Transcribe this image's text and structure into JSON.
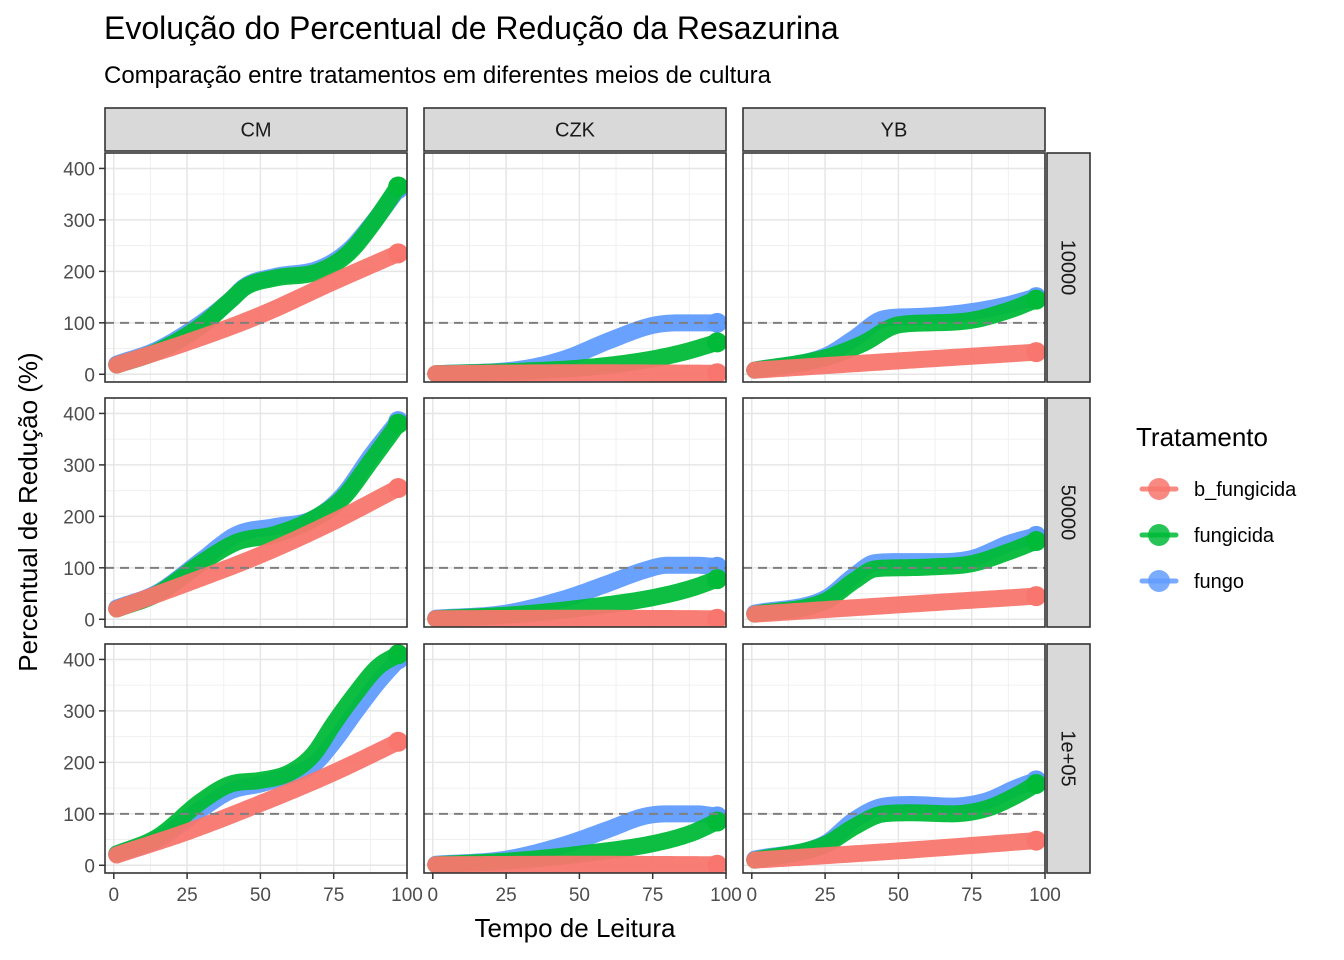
{
  "chart_data": {
    "type": "line",
    "title": "Evolução do Percentual de Redução da Resazurina",
    "subtitle": "Comparação entre tratamentos em diferentes meios de cultura",
    "xlabel": "Tempo de Leitura",
    "ylabel": "Percentual de Redução (%)",
    "xlim": [
      -3,
      100
    ],
    "ylim": [
      -15,
      430
    ],
    "x_ticks": [
      "0",
      "25",
      "50",
      "75",
      "100"
    ],
    "y_ticks": [
      "0",
      "100",
      "200",
      "300",
      "400"
    ],
    "x_tick_values": [
      0,
      25,
      50,
      75,
      100
    ],
    "y_tick_values": [
      0,
      100,
      200,
      300,
      400
    ],
    "reference_line_y": 100,
    "reference_line_style": "dashed",
    "grid": true,
    "theme": "bw",
    "legend_title": "Tratamento",
    "legend_position": "right",
    "colors": {
      "b_fungicida": "#F8766D",
      "fungicida": "#00BA38",
      "fungo": "#619CFF"
    },
    "columns": [
      "CM",
      "CZK",
      "YB"
    ],
    "rows": [
      "10000",
      "50000",
      "1e+05"
    ],
    "series_order": [
      "b_fungicida",
      "fungicida",
      "fungo"
    ],
    "draw_order": [
      "fungo",
      "fungicida",
      "b_fungicida"
    ],
    "panels": [
      {
        "row": "10000",
        "col": "CM",
        "series": [
          {
            "name": "b_fungicida",
            "x": [
              1,
              25,
              50,
              75,
              97
            ],
            "y": [
              18,
              62,
              115,
              180,
              235
            ]
          },
          {
            "name": "fungicida",
            "x": [
              1,
              15,
              30,
              40,
              45,
              55,
              70,
              80,
              88,
              97
            ],
            "y": [
              18,
              45,
              95,
              145,
              170,
              187,
              200,
              235,
              290,
              365
            ]
          },
          {
            "name": "fungo",
            "x": [
              1,
              15,
              30,
              40,
              45,
              55,
              70,
              80,
              88,
              97
            ],
            "y": [
              20,
              48,
              100,
              145,
              172,
              190,
              205,
              240,
              292,
              360
            ]
          }
        ]
      },
      {
        "row": "10000",
        "col": "CZK",
        "series": [
          {
            "name": "b_fungicida",
            "x": [
              1,
              50,
              97
            ],
            "y": [
              1,
              3,
              2
            ]
          },
          {
            "name": "fungicida",
            "x": [
              1,
              30,
              50,
              70,
              85,
              97
            ],
            "y": [
              1,
              6,
              12,
              25,
              42,
              62
            ]
          },
          {
            "name": "fungo",
            "x": [
              1,
              30,
              45,
              60,
              75,
              85,
              97
            ],
            "y": [
              1,
              10,
              30,
              65,
              95,
              100,
              100
            ]
          }
        ]
      },
      {
        "row": "10000",
        "col": "YB",
        "series": [
          {
            "name": "b_fungicida",
            "x": [
              1,
              50,
              97
            ],
            "y": [
              8,
              26,
              43
            ]
          },
          {
            "name": "fungicida",
            "x": [
              1,
              25,
              38,
              50,
              62,
              75,
              88,
              97
            ],
            "y": [
              8,
              32,
              60,
              96,
              100,
              105,
              125,
              145
            ]
          },
          {
            "name": "fungo",
            "x": [
              1,
              25,
              35,
              45,
              55,
              70,
              85,
              97
            ],
            "y": [
              8,
              35,
              70,
              108,
              112,
              118,
              132,
              150
            ]
          }
        ]
      },
      {
        "row": "50000",
        "col": "CM",
        "series": [
          {
            "name": "b_fungicida",
            "x": [
              1,
              25,
              50,
              75,
              97
            ],
            "y": [
              20,
              70,
              125,
              190,
              255
            ]
          },
          {
            "name": "fungicida",
            "x": [
              1,
              15,
              30,
              42,
              55,
              68,
              78,
              88,
              97
            ],
            "y": [
              20,
              50,
              110,
              150,
              165,
              195,
              235,
              310,
              380
            ]
          },
          {
            "name": "fungo",
            "x": [
              1,
              15,
              30,
              42,
              55,
              68,
              78,
              88,
              97
            ],
            "y": [
              22,
              52,
              115,
              165,
              180,
              195,
              240,
              320,
              385
            ]
          }
        ]
      },
      {
        "row": "50000",
        "col": "CZK",
        "series": [
          {
            "name": "b_fungicida",
            "x": [
              1,
              50,
              97
            ],
            "y": [
              1,
              2,
              1
            ]
          },
          {
            "name": "fungicida",
            "x": [
              1,
              30,
              55,
              75,
              88,
              97
            ],
            "y": [
              1,
              10,
              25,
              42,
              60,
              78
            ]
          },
          {
            "name": "fungo",
            "x": [
              1,
              25,
              45,
              60,
              72,
              80,
              90,
              97
            ],
            "y": [
              2,
              12,
              40,
              70,
              95,
              105,
              105,
              102
            ]
          }
        ]
      },
      {
        "row": "50000",
        "col": "YB",
        "series": [
          {
            "name": "b_fungicida",
            "x": [
              1,
              50,
              97
            ],
            "y": [
              10,
              28,
              45
            ]
          },
          {
            "name": "fungicida",
            "x": [
              1,
              25,
              35,
              42,
              50,
              62,
              75,
              88,
              97
            ],
            "y": [
              10,
              35,
              75,
              98,
              100,
              102,
              108,
              132,
              152
            ]
          },
          {
            "name": "fungo",
            "x": [
              1,
              25,
              35,
              42,
              50,
              62,
              75,
              88,
              97
            ],
            "y": [
              12,
              40,
              85,
              110,
              112,
              112,
              118,
              148,
              162
            ]
          }
        ]
      },
      {
        "row": "1e+05",
        "col": "CM",
        "series": [
          {
            "name": "b_fungicida",
            "x": [
              1,
              25,
              50,
              75,
              97
            ],
            "y": [
              20,
              65,
              120,
              180,
              240
            ]
          },
          {
            "name": "fungicida",
            "x": [
              1,
              15,
              30,
              40,
              50,
              60,
              68,
              75,
              82,
              90,
              97
            ],
            "y": [
              22,
              55,
              125,
              158,
              165,
              180,
              215,
              275,
              330,
              385,
              410
            ]
          },
          {
            "name": "fungo",
            "x": [
              1,
              15,
              30,
              40,
              50,
              60,
              68,
              75,
              82,
              90,
              97
            ],
            "y": [
              22,
              50,
              110,
              145,
              158,
              175,
              195,
              240,
              295,
              355,
              400
            ]
          }
        ]
      },
      {
        "row": "1e+05",
        "col": "CZK",
        "series": [
          {
            "name": "b_fungicida",
            "x": [
              1,
              50,
              97
            ],
            "y": [
              1,
              2,
              1
            ]
          },
          {
            "name": "fungicida",
            "x": [
              1,
              30,
              55,
              75,
              88,
              97
            ],
            "y": [
              1,
              10,
              25,
              42,
              62,
              85
            ]
          },
          {
            "name": "fungo",
            "x": [
              1,
              25,
              45,
              60,
              72,
              80,
              90,
              97
            ],
            "y": [
              2,
              12,
              40,
              70,
              95,
              100,
              100,
              95
            ]
          }
        ]
      },
      {
        "row": "1e+05",
        "col": "YB",
        "series": [
          {
            "name": "b_fungicida",
            "x": [
              1,
              50,
              97
            ],
            "y": [
              10,
              28,
              48
            ]
          },
          {
            "name": "fungicida",
            "x": [
              1,
              25,
              35,
              45,
              55,
              68,
              80,
              90,
              97
            ],
            "y": [
              10,
              40,
              75,
              100,
              102,
              100,
              110,
              135,
              158
            ]
          },
          {
            "name": "fungo",
            "x": [
              1,
              25,
              35,
              45,
              55,
              68,
              80,
              90,
              97
            ],
            "y": [
              12,
              42,
              88,
              115,
              118,
              115,
              125,
              150,
              165
            ]
          }
        ]
      }
    ]
  }
}
